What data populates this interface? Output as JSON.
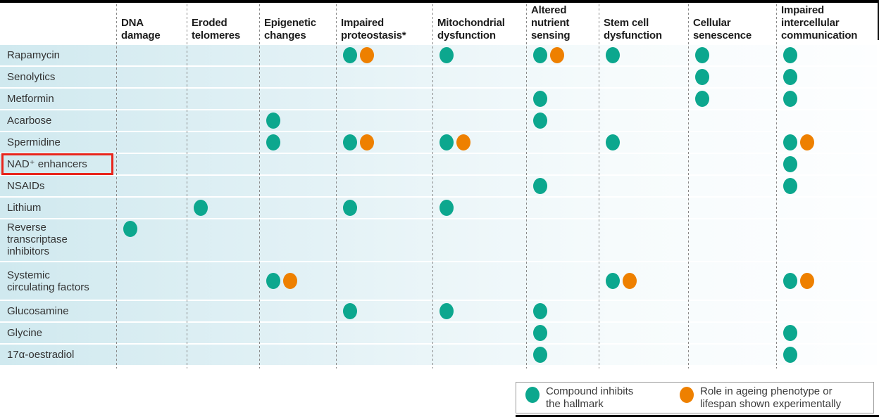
{
  "figure": {
    "colors": {
      "inhibits": "#0ca78e",
      "experimental": "#ee8000",
      "highlight_box": "#e8251c"
    }
  },
  "chart_data": {
    "type": "table",
    "description": "Matrix of compounds versus hallmarks of ageing; teal dot = compound inhibits the hallmark, orange dot = role in ageing phenotype or lifespan shown experimentally",
    "columns": [
      "DNA\ndamage",
      "Eroded\ntelomeres",
      "Epigenetic\nchanges",
      "Impaired\nproteostasis*",
      "Mitochondrial\ndysfunction",
      "Altered\nnutrient\nsensing",
      "Stem cell\ndysfunction",
      "Cellular\nsenescence",
      "Impaired\nintercellular\ncommunication"
    ],
    "rows": [
      {
        "label": "Rapamycin",
        "cells": [
          [],
          [],
          [],
          [
            "inhibits",
            "experimental"
          ],
          [
            "inhibits"
          ],
          [
            "inhibits",
            "experimental"
          ],
          [
            "inhibits"
          ],
          [
            "inhibits"
          ],
          [
            "inhibits"
          ]
        ]
      },
      {
        "label": "Senolytics",
        "cells": [
          [],
          [],
          [],
          [],
          [],
          [],
          [],
          [
            "inhibits"
          ],
          [
            "inhibits"
          ]
        ]
      },
      {
        "label": "Metformin",
        "cells": [
          [],
          [],
          [],
          [],
          [],
          [
            "inhibits"
          ],
          [],
          [
            "inhibits"
          ],
          [
            "inhibits"
          ]
        ]
      },
      {
        "label": "Acarbose",
        "cells": [
          [],
          [],
          [
            "inhibits"
          ],
          [],
          [],
          [
            "inhibits"
          ],
          [],
          [],
          []
        ]
      },
      {
        "label": "Spermidine",
        "cells": [
          [],
          [],
          [
            "inhibits"
          ],
          [
            "inhibits",
            "experimental"
          ],
          [
            "inhibits",
            "experimental"
          ],
          [],
          [
            "inhibits"
          ],
          [],
          [
            "inhibits",
            "experimental"
          ]
        ]
      },
      {
        "label": "NAD⁺ enhancers",
        "highlight": true,
        "cells": [
          [],
          [],
          [],
          [],
          [],
          [],
          [],
          [],
          [
            "inhibits"
          ]
        ]
      },
      {
        "label": "NSAIDs",
        "cells": [
          [],
          [],
          [],
          [],
          [],
          [
            "inhibits"
          ],
          [],
          [],
          [
            "inhibits"
          ]
        ]
      },
      {
        "label": "Lithium",
        "cells": [
          [],
          [
            "inhibits"
          ],
          [],
          [
            "inhibits"
          ],
          [
            "inhibits"
          ],
          [],
          [],
          [],
          []
        ]
      },
      {
        "label": "Reverse\ntranscriptase\ninhibitors",
        "cells": [
          [
            "inhibits"
          ],
          [],
          [],
          [],
          [],
          [],
          [],
          [],
          []
        ]
      },
      {
        "label": "Systemic\ncirculating factors",
        "cells": [
          [],
          [],
          [
            "inhibits",
            "experimental"
          ],
          [],
          [],
          [],
          [
            "inhibits",
            "experimental"
          ],
          [],
          [
            "inhibits",
            "experimental"
          ]
        ]
      },
      {
        "label": "Glucosamine",
        "cells": [
          [],
          [],
          [],
          [
            "inhibits"
          ],
          [
            "inhibits"
          ],
          [
            "inhibits"
          ],
          [],
          [],
          []
        ]
      },
      {
        "label": "Glycine",
        "cells": [
          [],
          [],
          [],
          [],
          [],
          [
            "inhibits"
          ],
          [],
          [],
          [
            "inhibits"
          ]
        ]
      },
      {
        "label": "17α-oestradiol",
        "cells": [
          [],
          [],
          [],
          [],
          [],
          [
            "inhibits"
          ],
          [],
          [],
          [
            "inhibits"
          ]
        ]
      }
    ],
    "legend": {
      "items": [
        {
          "marker": "inhibits",
          "label": "Compound inhibits\nthe hallmark"
        },
        {
          "marker": "experimental",
          "label": "Role in ageing phenotype or\nlifespan shown experimentally"
        }
      ]
    }
  }
}
